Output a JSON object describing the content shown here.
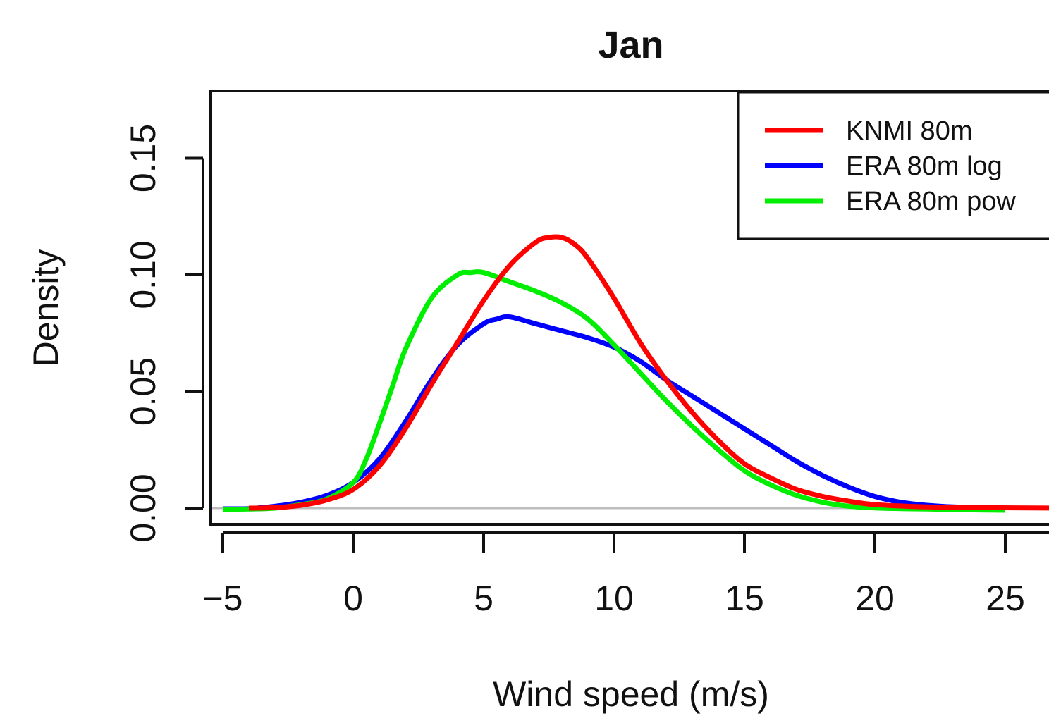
{
  "chart_data": {
    "type": "line",
    "title": "Jan",
    "xlabel": "Wind speed (m/s)",
    "ylabel": "Density",
    "xlim": [
      -5,
      27
    ],
    "ylim": [
      -0.007,
      0.18
    ],
    "x_ticks": [
      -5,
      0,
      5,
      10,
      15,
      20,
      25
    ],
    "x_tick_labels": [
      "−5",
      "0",
      "5",
      "10",
      "15",
      "20",
      "25"
    ],
    "y_ticks": [
      0.0,
      0.05,
      0.1,
      0.15
    ],
    "y_tick_labels": [
      "0.00",
      "0.05",
      "0.10",
      "0.15"
    ],
    "grid": false,
    "baseline": 0,
    "baseline_color": "#bdbdbd",
    "legend_position": "top-right",
    "series": [
      {
        "name": "KNMI 80m",
        "color": "#ff0000",
        "x": [
          -4,
          -3,
          -2,
          -1,
          0,
          1,
          2,
          3,
          4,
          5,
          6,
          7,
          7.5,
          8,
          8.5,
          9,
          10,
          11,
          12,
          13,
          14,
          15,
          16,
          17,
          18,
          19,
          20,
          22,
          24,
          27
        ],
        "y": [
          0.0,
          0.0002,
          0.0012,
          0.0035,
          0.008,
          0.018,
          0.034,
          0.053,
          0.071,
          0.089,
          0.104,
          0.114,
          0.116,
          0.116,
          0.113,
          0.107,
          0.09,
          0.071,
          0.055,
          0.041,
          0.029,
          0.019,
          0.013,
          0.008,
          0.005,
          0.003,
          0.0015,
          0.0005,
          0.0002,
          0.0
        ]
      },
      {
        "name": "ERA 80m log",
        "color": "#0000ff",
        "x": [
          -5,
          -4,
          -3,
          -2,
          -1,
          0,
          1,
          2,
          3,
          4,
          5,
          5.5,
          6,
          7,
          8,
          9,
          10,
          11,
          12,
          13,
          14,
          15,
          16,
          17,
          18,
          19,
          20,
          21,
          22,
          23,
          24
        ],
        "y": [
          -0.0003,
          -0.0002,
          0.0008,
          0.0025,
          0.0055,
          0.011,
          0.021,
          0.037,
          0.055,
          0.07,
          0.079,
          0.081,
          0.082,
          0.079,
          0.076,
          0.073,
          0.069,
          0.063,
          0.055,
          0.048,
          0.041,
          0.034,
          0.027,
          0.02,
          0.014,
          0.009,
          0.005,
          0.0025,
          0.0012,
          0.0005,
          0.0002
        ]
      },
      {
        "name": "ERA 80m pow",
        "color": "#00ee00",
        "x": [
          -5,
          -4,
          -3,
          -2,
          -1,
          0,
          0.5,
          1,
          1.5,
          2,
          3,
          4,
          4.5,
          5,
          6,
          7,
          8,
          9,
          10,
          11,
          12,
          13,
          14,
          15,
          16,
          17,
          18,
          19,
          20,
          21,
          22,
          23,
          24,
          25
        ],
        "y": [
          -0.0005,
          -0.0004,
          0.0,
          0.0015,
          0.004,
          0.011,
          0.021,
          0.036,
          0.052,
          0.068,
          0.09,
          0.1,
          0.101,
          0.101,
          0.097,
          0.093,
          0.088,
          0.081,
          0.07,
          0.058,
          0.046,
          0.035,
          0.025,
          0.016,
          0.01,
          0.0055,
          0.0025,
          0.0008,
          0.0001,
          -0.0002,
          -0.0004,
          -0.0006,
          -0.0008,
          -0.0009
        ]
      }
    ]
  }
}
